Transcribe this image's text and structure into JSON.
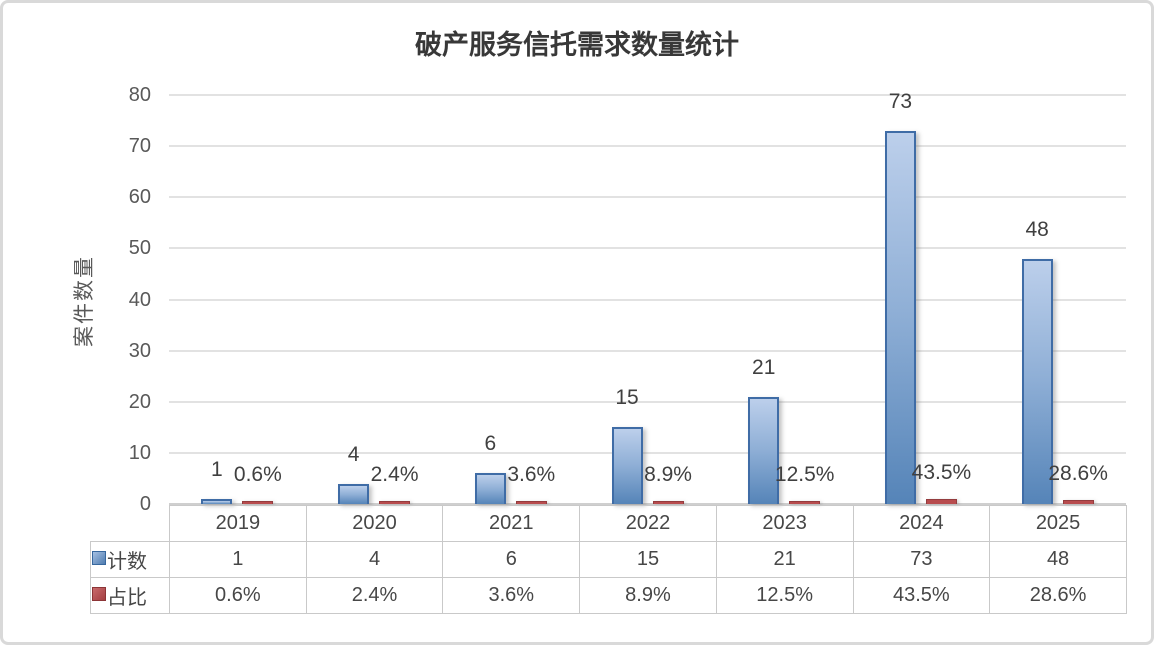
{
  "chart_data": {
    "type": "bar",
    "title": "破产服务信托需求数量统计",
    "xlabel": "",
    "ylabel": "案件数量",
    "categories": [
      "2019",
      "2020",
      "2021",
      "2022",
      "2023",
      "2024",
      "2025"
    ],
    "series": [
      {
        "name": "计数",
        "values": [
          1,
          4,
          6,
          15,
          21,
          73,
          48
        ],
        "labels": [
          "1",
          "4",
          "6",
          "15",
          "21",
          "73",
          "48"
        ],
        "color": "#5c88bb"
      },
      {
        "name": "占比",
        "values": [
          0.6,
          2.4,
          3.6,
          8.9,
          12.5,
          43.5,
          28.6
        ],
        "labels": [
          "0.6%",
          "2.4%",
          "3.6%",
          "8.9%",
          "12.5%",
          "43.5%",
          "28.6%"
        ],
        "color": "#b84c4e"
      }
    ],
    "ylim": [
      0,
      80
    ],
    "yticks": [
      0,
      10,
      20,
      30,
      40,
      50,
      60,
      70,
      80
    ],
    "grid": true,
    "legend_position": "table-left",
    "data_table_shown": true
  },
  "colors": {
    "bar_blue_top": "#bccfeb",
    "bar_blue_bottom": "#5584b8",
    "bar_blue_border": "#3f6ca6",
    "bar_red": "#b84c4e",
    "bar_red_border": "#943c3e",
    "gridline": "#e2e2e2",
    "tick_text": "#595959",
    "label_text": "#404040",
    "table_border": "#c9c9c9"
  }
}
